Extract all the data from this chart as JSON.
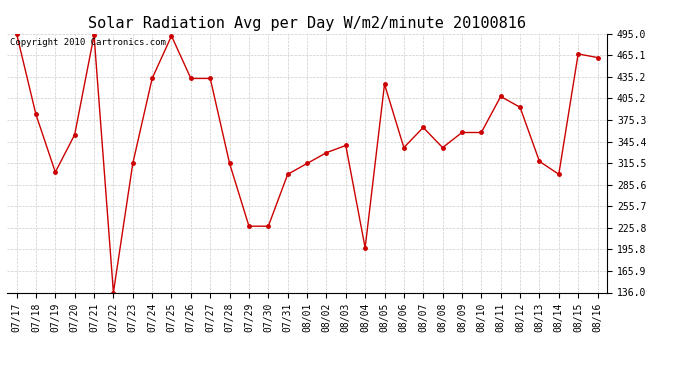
{
  "title": "Solar Radiation Avg per Day W/m2/minute 20100816",
  "copyright_text": "Copyright 2010 Cartronics.com",
  "labels": [
    "07/17",
    "07/18",
    "07/19",
    "07/20",
    "07/21",
    "07/22",
    "07/23",
    "07/24",
    "07/25",
    "07/26",
    "07/27",
    "07/28",
    "07/29",
    "07/30",
    "07/31",
    "08/01",
    "08/02",
    "08/03",
    "08/04",
    "08/05",
    "08/06",
    "08/07",
    "08/08",
    "08/09",
    "08/10",
    "08/11",
    "08/12",
    "08/13",
    "08/14",
    "08/15",
    "08/16"
  ],
  "values": [
    495.0,
    383.0,
    303.0,
    355.0,
    493.0,
    136.0,
    315.0,
    433.0,
    492.0,
    433.0,
    433.0,
    315.0,
    228.0,
    228.0,
    300.0,
    315.0,
    330.0,
    340.0,
    198.0,
    425.0,
    337.0,
    365.0,
    337.0,
    358.0,
    358.0,
    408.0,
    393.0,
    318.0,
    300.0,
    467.0,
    462.0
  ],
  "line_color": "#cc0000",
  "marker_color": "#cc0000",
  "bg_color": "#ffffff",
  "grid_color": "#cccccc",
  "ylim_min": 136.0,
  "ylim_max": 495.0,
  "yticks": [
    495.0,
    465.1,
    435.2,
    405.2,
    375.3,
    345.4,
    315.5,
    285.6,
    255.7,
    225.8,
    195.8,
    165.9,
    136.0
  ],
  "title_fontsize": 11,
  "tick_fontsize": 7,
  "copyright_fontsize": 6.5
}
